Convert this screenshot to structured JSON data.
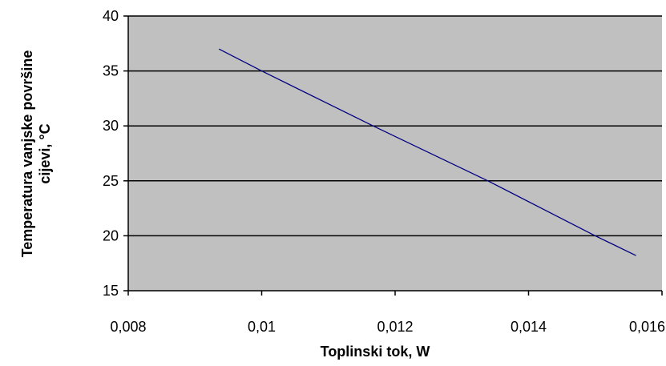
{
  "chart_data": {
    "type": "line",
    "title": "",
    "xlabel": "Toplinski tok, W",
    "ylabel_lines": [
      "Temperatura vanjske površine",
      "cijevi, °C"
    ],
    "xlim": [
      0.008,
      0.016
    ],
    "ylim": [
      15,
      40
    ],
    "x_ticks": [
      0.008,
      0.01,
      0.012,
      0.014,
      0.016
    ],
    "x_tick_labels": [
      "0,008",
      "0,01",
      "0,012",
      "0,014",
      "0,016"
    ],
    "y_ticks": [
      15,
      20,
      25,
      30,
      35,
      40
    ],
    "y_tick_labels": [
      "15",
      "20",
      "25",
      "30",
      "35",
      "40"
    ],
    "grid": "horizontal major",
    "legend": "none",
    "colors": {
      "plot_background": "#c0c0c0",
      "series": "#000080",
      "gridline": "#000000"
    },
    "series": [
      {
        "x": [
          0.00936,
          0.01,
          0.01167,
          0.01339,
          0.015,
          0.01561
        ],
        "y": [
          37,
          35,
          30,
          25,
          20,
          18.2
        ]
      }
    ]
  }
}
